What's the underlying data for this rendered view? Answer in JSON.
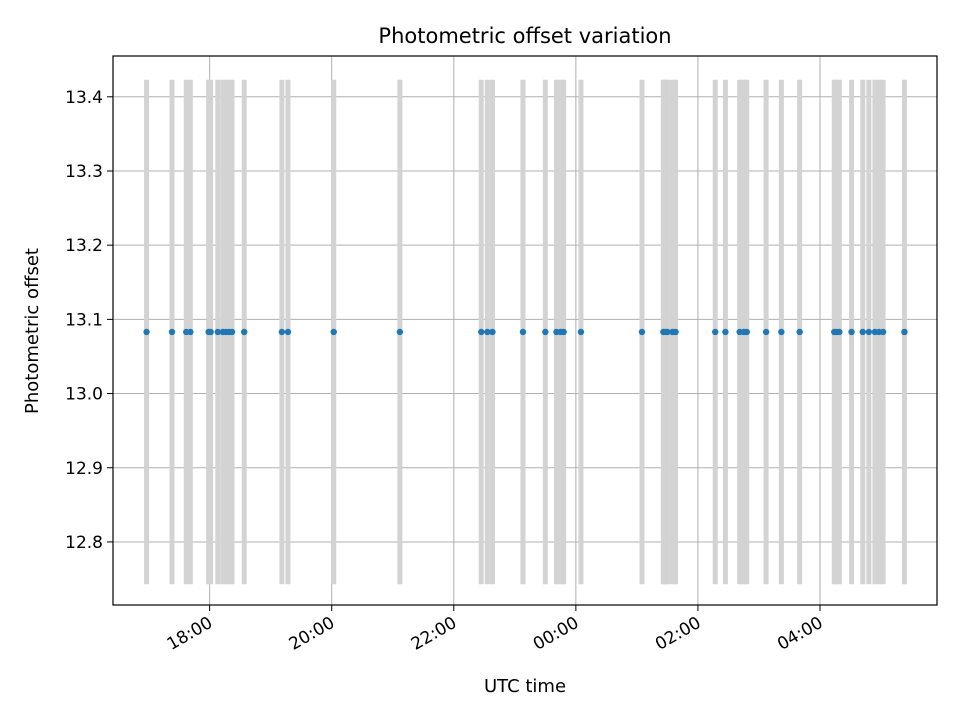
{
  "chart_data": {
    "type": "scatter",
    "title": "Photometric offset variation",
    "xlabel": "UTC time",
    "ylabel": "Photometric offset",
    "x_axis_type": "time",
    "x_range": [
      "16:25",
      "05:55"
    ],
    "ylim": [
      12.715,
      13.455
    ],
    "grid": true,
    "x_ticks": [
      "18:00",
      "20:00",
      "22:00",
      "00:00",
      "02:00",
      "04:00"
    ],
    "y_ticks": [
      "12.8",
      "12.9",
      "13.0",
      "13.1",
      "13.2",
      "13.3",
      "13.4"
    ],
    "error_bar_color": "#d3d3d3",
    "marker_color": "#1f77b4",
    "series": [
      {
        "x": [
          "16:58",
          "17:23",
          "17:37",
          "17:41",
          "17:59",
          "18:01",
          "18:08",
          "18:13",
          "18:16",
          "18:19",
          "18:22",
          "18:34",
          "19:11",
          "19:17",
          "20:02",
          "21:07",
          "22:27",
          "22:33",
          "22:38",
          "23:08",
          "23:30",
          "23:41",
          "23:45",
          "23:48",
          "24:05",
          "25:05",
          "25:26",
          "25:28",
          "25:30",
          "25:35",
          "25:38",
          "26:17",
          "26:27",
          "26:41",
          "26:45",
          "26:48",
          "27:07",
          "27:22",
          "27:40",
          "28:14",
          "28:16",
          "28:19",
          "28:31",
          "28:42",
          "28:48",
          "28:54",
          "28:58",
          "29:02",
          "29:23"
        ],
        "y": [
          13.083,
          13.083,
          13.083,
          13.083,
          13.083,
          13.083,
          13.083,
          13.083,
          13.083,
          13.083,
          13.083,
          13.083,
          13.083,
          13.083,
          13.083,
          13.083,
          13.083,
          13.083,
          13.083,
          13.083,
          13.083,
          13.083,
          13.083,
          13.083,
          13.083,
          13.083,
          13.083,
          13.083,
          13.083,
          13.083,
          13.083,
          13.083,
          13.083,
          13.083,
          13.083,
          13.083,
          13.083,
          13.083,
          13.083,
          13.083,
          13.083,
          13.083,
          13.083,
          13.083,
          13.083,
          13.083,
          13.083,
          13.083,
          13.083
        ],
        "y_err_low": 0.34,
        "y_err_high": 0.34
      }
    ]
  }
}
